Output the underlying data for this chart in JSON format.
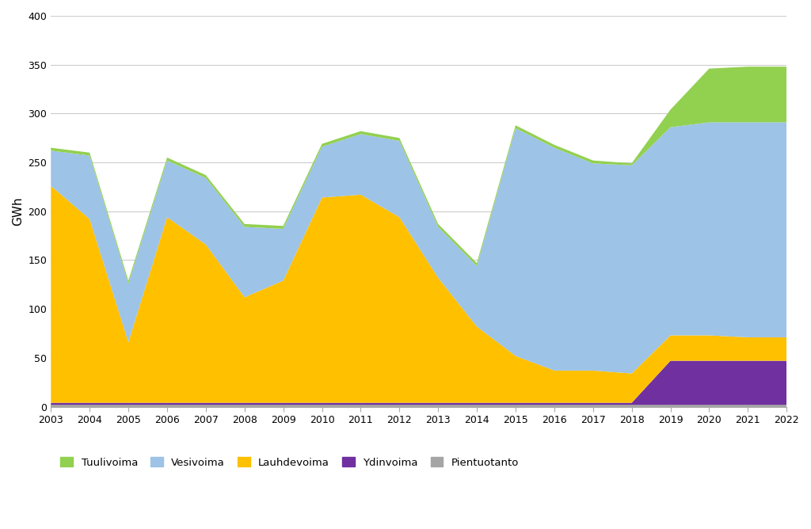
{
  "years": [
    2003,
    2004,
    2005,
    2006,
    2007,
    2008,
    2009,
    2010,
    2011,
    2012,
    2013,
    2014,
    2015,
    2016,
    2017,
    2018,
    2019,
    2020,
    2021,
    2022
  ],
  "pientuotanto": [
    2,
    2,
    2,
    2,
    2,
    2,
    2,
    2,
    2,
    2,
    2,
    2,
    2,
    2,
    2,
    2,
    2,
    2,
    2,
    2
  ],
  "ydinvoima": [
    2,
    2,
    2,
    2,
    2,
    2,
    2,
    2,
    2,
    2,
    2,
    2,
    2,
    2,
    2,
    2,
    45,
    45,
    45,
    45
  ],
  "lauhdevoima": [
    222,
    188,
    62,
    190,
    162,
    108,
    125,
    210,
    213,
    190,
    128,
    78,
    48,
    33,
    33,
    30,
    26,
    26,
    24,
    24
  ],
  "vesivoima": [
    36,
    65,
    60,
    58,
    68,
    72,
    53,
    52,
    62,
    78,
    52,
    62,
    233,
    228,
    212,
    213,
    213,
    218,
    220,
    220
  ],
  "tuulivoima": [
    3,
    3,
    3,
    3,
    3,
    3,
    3,
    3,
    3,
    3,
    3,
    3,
    3,
    3,
    3,
    2,
    18,
    55,
    57,
    57
  ],
  "colors": {
    "pientuotanto": "#A5A5A5",
    "ydinvoima": "#7030A0",
    "lauhdevoima": "#FFC000",
    "vesivoima": "#9DC3E6",
    "tuulivoima": "#92D050"
  },
  "legend_labels": [
    "Tuulivoima",
    "Vesivoima",
    "Lauhdevoima",
    "Ydinvoima",
    "Pientuotanto"
  ],
  "ylabel": "GWh",
  "ylim": [
    0,
    400
  ],
  "yticks": [
    0,
    50,
    100,
    150,
    200,
    250,
    300,
    350,
    400
  ],
  "background_color": "#ffffff"
}
